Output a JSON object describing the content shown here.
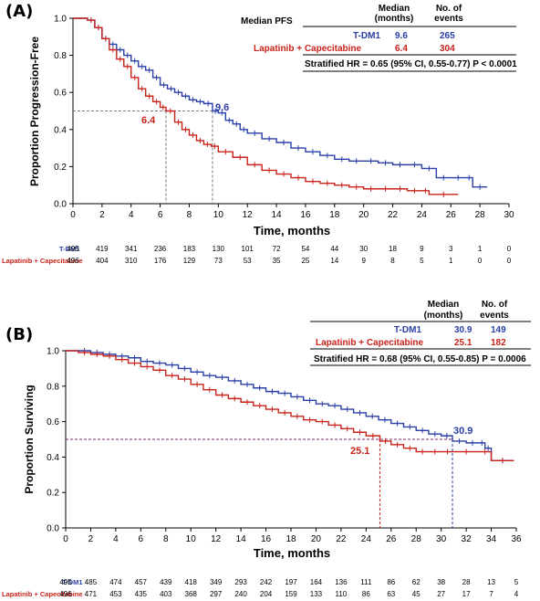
{
  "colors": {
    "tdm1": "#2a3fa8",
    "lap": "#c8231b"
  },
  "chart_data": [
    {
      "panel": "(A)",
      "type": "line",
      "xlabel": "Time, months",
      "ylabel": "Proportion Progression-Free",
      "xlim": [
        0,
        30
      ],
      "ylim": [
        0,
        1.0
      ],
      "x_ticks": [
        "0",
        "2",
        "4",
        "6",
        "8",
        "10",
        "12",
        "14",
        "16",
        "18",
        "20",
        "22",
        "24",
        "26",
        "28",
        "30"
      ],
      "y_ticks": [
        "0.0",
        "0.2",
        "0.4",
        "0.6",
        "0.8",
        "1.0"
      ],
      "legend": {
        "title": "Median PFS",
        "col_median": "Median (months)",
        "col_events": "No. of events",
        "rows": [
          {
            "label": "T-DM1",
            "median": "9.6",
            "events": "265"
          },
          {
            "label": "Lapatinib + Capecitabine",
            "median": "6.4",
            "events": "304"
          }
        ],
        "hr_text": "Stratified HR = 0.65 (95% CI, 0.55-0.77) P < 0.0001"
      },
      "median_labels": [
        "9.6",
        "6.4"
      ],
      "series": [
        {
          "name": "T-DM1",
          "color": "#2a3fa8",
          "median": 9.6,
          "points": [
            [
              0,
              1.0
            ],
            [
              1.0,
              0.99
            ],
            [
              1.5,
              0.95
            ],
            [
              2,
              0.89
            ],
            [
              2.5,
              0.86
            ],
            [
              3,
              0.83
            ],
            [
              3.5,
              0.8
            ],
            [
              4,
              0.77
            ],
            [
              4.5,
              0.74
            ],
            [
              5,
              0.72
            ],
            [
              5.5,
              0.68
            ],
            [
              6,
              0.64
            ],
            [
              6.5,
              0.62
            ],
            [
              7,
              0.6
            ],
            [
              7.5,
              0.58
            ],
            [
              8,
              0.56
            ],
            [
              8.5,
              0.55
            ],
            [
              9,
              0.54
            ],
            [
              9.6,
              0.5
            ],
            [
              10,
              0.49
            ],
            [
              10.5,
              0.45
            ],
            [
              11,
              0.43
            ],
            [
              11.5,
              0.4
            ],
            [
              12,
              0.38
            ],
            [
              13,
              0.35
            ],
            [
              14,
              0.33
            ],
            [
              15,
              0.3
            ],
            [
              16,
              0.28
            ],
            [
              17,
              0.26
            ],
            [
              18,
              0.24
            ],
            [
              19,
              0.23
            ],
            [
              20,
              0.23
            ],
            [
              21,
              0.22
            ],
            [
              22,
              0.21
            ],
            [
              23,
              0.21
            ],
            [
              24,
              0.19
            ],
            [
              25,
              0.14
            ],
            [
              26,
              0.14
            ],
            [
              27,
              0.14
            ],
            [
              27.5,
              0.09
            ],
            [
              28.5,
              0.09
            ]
          ]
        },
        {
          "name": "Lapatinib + Capecitabine",
          "color": "#c8231b",
          "median": 6.4,
          "points": [
            [
              0,
              1.0
            ],
            [
              1.0,
              0.99
            ],
            [
              1.5,
              0.95
            ],
            [
              2,
              0.89
            ],
            [
              2.5,
              0.83
            ],
            [
              3,
              0.78
            ],
            [
              3.5,
              0.74
            ],
            [
              4,
              0.68
            ],
            [
              4.5,
              0.62
            ],
            [
              5,
              0.58
            ],
            [
              5.5,
              0.55
            ],
            [
              6,
              0.52
            ],
            [
              6.4,
              0.5
            ],
            [
              7,
              0.44
            ],
            [
              7.5,
              0.4
            ],
            [
              8,
              0.37
            ],
            [
              8.5,
              0.34
            ],
            [
              9,
              0.32
            ],
            [
              9.5,
              0.31
            ],
            [
              10,
              0.28
            ],
            [
              11,
              0.25
            ],
            [
              12,
              0.21
            ],
            [
              13,
              0.18
            ],
            [
              14,
              0.16
            ],
            [
              15,
              0.14
            ],
            [
              16,
              0.12
            ],
            [
              17,
              0.11
            ],
            [
              18,
              0.1
            ],
            [
              19,
              0.09
            ],
            [
              20,
              0.08
            ],
            [
              21,
              0.08
            ],
            [
              22,
              0.08
            ],
            [
              23,
              0.07
            ],
            [
              24,
              0.07
            ],
            [
              24.5,
              0.05
            ],
            [
              26.5,
              0.05
            ]
          ]
        }
      ],
      "risk_table": {
        "rows": [
          {
            "label": "T-DM1",
            "values": [
              "495",
              "419",
              "341",
              "236",
              "183",
              "130",
              "101",
              "72",
              "54",
              "44",
              "30",
              "18",
              "9",
              "3",
              "1",
              "0"
            ]
          },
          {
            "label": "Lapatinib + Capecitabine",
            "values": [
              "496",
              "404",
              "310",
              "176",
              "129",
              "73",
              "53",
              "35",
              "25",
              "14",
              "9",
              "8",
              "5",
              "1",
              "0",
              "0"
            ]
          }
        ]
      }
    },
    {
      "panel": "(B)",
      "type": "line",
      "xlabel": "Time, months",
      "ylabel": "Proportion Surviving",
      "xlim": [
        0,
        36
      ],
      "ylim": [
        0,
        1.0
      ],
      "x_ticks": [
        "0",
        "2",
        "4",
        "6",
        "8",
        "10",
        "12",
        "14",
        "16",
        "18",
        "20",
        "22",
        "24",
        "26",
        "28",
        "30",
        "32",
        "34",
        "36"
      ],
      "y_ticks": [
        "0.0",
        "0.2",
        "0.4",
        "0.6",
        "0.8",
        "1.0"
      ],
      "legend": {
        "col_median": "Median (months)",
        "col_events": "No. of events",
        "rows": [
          {
            "label": "T-DM1",
            "median": "30.9",
            "events": "149"
          },
          {
            "label": "Lapatinib + Capecitabine",
            "median": "25.1",
            "events": "182"
          }
        ],
        "hr_text": "Stratified HR = 0.68 (95% CI, 0.55-0.85) P = 0.0006"
      },
      "median_labels": [
        "30.9",
        "25.1"
      ],
      "series": [
        {
          "name": "T-DM1",
          "color": "#2a3fa8",
          "median": 30.9,
          "points": [
            [
              0,
              1.0
            ],
            [
              1,
              1.0
            ],
            [
              2,
              0.99
            ],
            [
              3,
              0.98
            ],
            [
              4,
              0.97
            ],
            [
              5,
              0.96
            ],
            [
              6,
              0.94
            ],
            [
              7,
              0.93
            ],
            [
              8,
              0.92
            ],
            [
              9,
              0.9
            ],
            [
              10,
              0.88
            ],
            [
              11,
              0.86
            ],
            [
              12,
              0.85
            ],
            [
              13,
              0.83
            ],
            [
              14,
              0.81
            ],
            [
              15,
              0.79
            ],
            [
              16,
              0.77
            ],
            [
              17,
              0.76
            ],
            [
              18,
              0.74
            ],
            [
              19,
              0.72
            ],
            [
              20,
              0.7
            ],
            [
              21,
              0.69
            ],
            [
              22,
              0.67
            ],
            [
              23,
              0.65
            ],
            [
              24,
              0.63
            ],
            [
              25,
              0.61
            ],
            [
              26,
              0.59
            ],
            [
              27,
              0.57
            ],
            [
              28,
              0.55
            ],
            [
              29,
              0.53
            ],
            [
              30,
              0.52
            ],
            [
              30.9,
              0.49
            ],
            [
              32,
              0.48
            ],
            [
              33,
              0.48
            ],
            [
              33.5,
              0.45
            ],
            [
              34,
              0.38
            ],
            [
              35.8,
              0.38
            ]
          ]
        },
        {
          "name": "Lapatinib + Capecitabine",
          "color": "#c8231b",
          "median": 25.1,
          "points": [
            [
              0,
              1.0
            ],
            [
              1,
              0.99
            ],
            [
              2,
              0.98
            ],
            [
              3,
              0.97
            ],
            [
              4,
              0.95
            ],
            [
              5,
              0.93
            ],
            [
              6,
              0.91
            ],
            [
              7,
              0.89
            ],
            [
              8,
              0.86
            ],
            [
              9,
              0.84
            ],
            [
              10,
              0.81
            ],
            [
              11,
              0.78
            ],
            [
              12,
              0.75
            ],
            [
              13,
              0.73
            ],
            [
              14,
              0.71
            ],
            [
              15,
              0.69
            ],
            [
              16,
              0.67
            ],
            [
              17,
              0.65
            ],
            [
              18,
              0.63
            ],
            [
              19,
              0.61
            ],
            [
              20,
              0.6
            ],
            [
              21,
              0.58
            ],
            [
              22,
              0.56
            ],
            [
              23,
              0.54
            ],
            [
              24,
              0.52
            ],
            [
              25.1,
              0.49
            ],
            [
              26,
              0.47
            ],
            [
              27,
              0.45
            ],
            [
              28,
              0.43
            ],
            [
              29,
              0.43
            ],
            [
              30,
              0.43
            ],
            [
              31,
              0.43
            ],
            [
              33,
              0.43
            ],
            [
              34,
              0.38
            ],
            [
              35.8,
              0.38
            ]
          ]
        }
      ],
      "risk_table": {
        "rows": [
          {
            "label": "T-DM1",
            "values": [
              "495",
              "485",
              "474",
              "457",
              "439",
              "418",
              "349",
              "293",
              "242",
              "197",
              "164",
              "136",
              "111",
              "86",
              "62",
              "38",
              "28",
              "13",
              "5"
            ]
          },
          {
            "label": "Lapatinib + Capecitabine",
            "values": [
              "496",
              "471",
              "453",
              "435",
              "403",
              "368",
              "297",
              "240",
              "204",
              "159",
              "133",
              "110",
              "86",
              "63",
              "45",
              "27",
              "17",
              "7",
              "4"
            ]
          }
        ]
      }
    }
  ]
}
